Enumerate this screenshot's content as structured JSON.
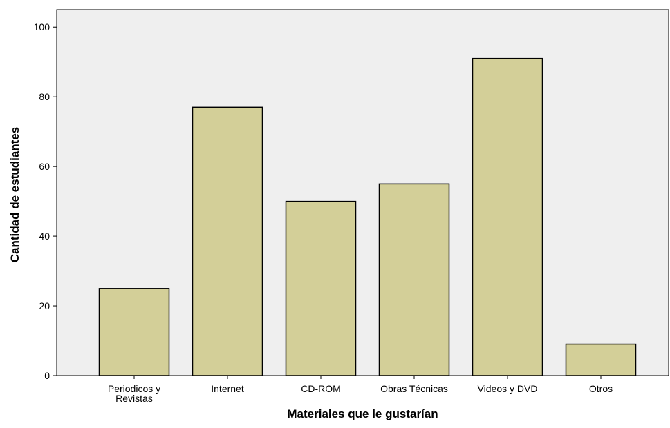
{
  "chart_data": {
    "type": "bar",
    "title": "",
    "xlabel": "Materiales que le gustarían",
    "ylabel": "Cantidad de estudiantes",
    "categories": [
      [
        "Periodicos y",
        "Revistas"
      ],
      [
        "Internet"
      ],
      [
        "CD-ROM"
      ],
      [
        "Obras Técnicas"
      ],
      [
        "Videos y DVD"
      ],
      [
        "Otros"
      ]
    ],
    "values": [
      25,
      77,
      50,
      55,
      91,
      9
    ],
    "ylim": [
      0,
      105
    ],
    "yticks": [
      0,
      20,
      40,
      60,
      80,
      100
    ],
    "grid": false,
    "legend": "none",
    "colors": {
      "plot_background": "#efefef",
      "bar_fill": "#d3cf98",
      "bar_stroke": "#000000",
      "axis": "#000000"
    }
  }
}
